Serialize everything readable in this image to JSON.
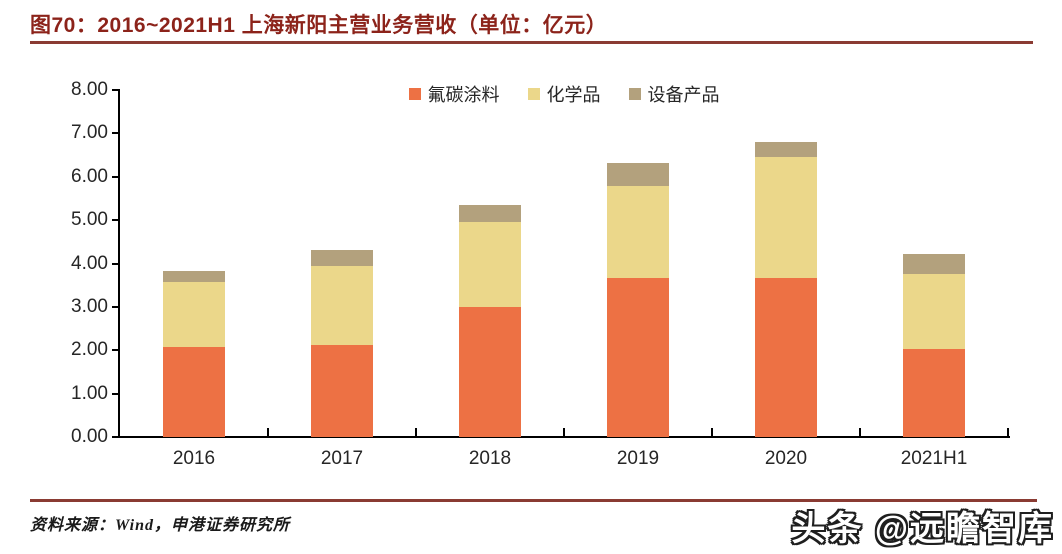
{
  "title": "图70：2016~2021H1 上海新阳主营业务营收（单位：亿元）",
  "footer": {
    "source": "资料来源：Wind，申港证券研究所",
    "watermark": "头条 @远瞻智库"
  },
  "colors": {
    "title_text": "#8C231A",
    "rule": "#8A3B33",
    "axis": "#000000",
    "tick_text": "#262626"
  },
  "chart_data": {
    "type": "bar",
    "stacked": true,
    "title": "2016~2021H1 上海新阳主营业务营收",
    "unit": "亿元",
    "categories": [
      "2016",
      "2017",
      "2018",
      "2019",
      "2020",
      "2021H1"
    ],
    "series": [
      {
        "name": "氟碳涂料",
        "color": "#ED7144",
        "values": [
          2.07,
          2.12,
          3.0,
          3.67,
          3.67,
          2.03
        ]
      },
      {
        "name": "化学品",
        "color": "#EBD78A",
        "values": [
          1.5,
          1.82,
          1.96,
          2.12,
          2.79,
          1.73
        ]
      },
      {
        "name": "设备产品",
        "color": "#B3A17D",
        "values": [
          0.26,
          0.37,
          0.39,
          0.53,
          0.35,
          0.46
        ]
      }
    ],
    "totals": [
      3.83,
      4.31,
      5.35,
      6.32,
      6.81,
      4.22
    ],
    "ylim": [
      0,
      8
    ],
    "ytick_step": 1.0,
    "ytick_labels": [
      "0.00",
      "1.00",
      "2.00",
      "3.00",
      "4.00",
      "5.00",
      "6.00",
      "7.00",
      "8.00"
    ],
    "grid": false,
    "legend_position": "top-center"
  }
}
